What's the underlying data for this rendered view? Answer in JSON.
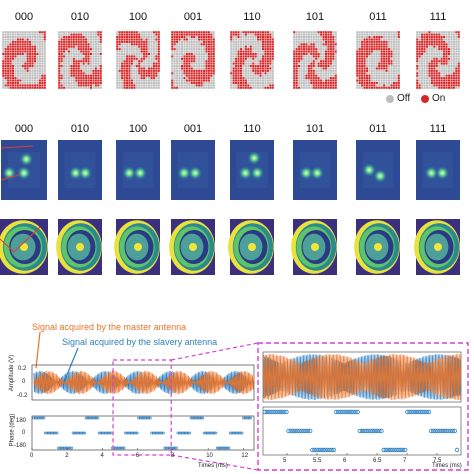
{
  "codes": [
    "000",
    "010",
    "100",
    "001",
    "110",
    "101",
    "011",
    "111"
  ],
  "legend": {
    "off": {
      "label": "Off",
      "color": "#bdbdbd"
    },
    "on": {
      "label": "On",
      "color": "#d62728"
    }
  },
  "colors": {
    "master": "#e8732b",
    "slave": "#2f7fc1",
    "dashed_box": "#d63fd6",
    "field_low": "#2b3a85",
    "field_high": "#f0e63a"
  },
  "annotations": {
    "master": "Signal acquired by the master antenna",
    "slave": "Signal acquired by the slavery antenna"
  },
  "plot": {
    "amp_ylabel": "Amplitude (V)",
    "amp_ticks": [
      "0.2",
      "0",
      "-0.2"
    ],
    "phase_ylabel": "Phase (deg)",
    "phase_ticks": [
      "180",
      "0",
      "-180"
    ],
    "xlabel": "Times (ms)",
    "xticks": [
      "0",
      "2",
      "4",
      "6",
      "8",
      "10",
      "12"
    ],
    "zoom_xticks": [
      "5",
      "5.5",
      "6",
      "6.5",
      "7",
      "7.5"
    ],
    "zoom_xlabel": "Times (ms)"
  },
  "chart_data": {
    "type": "line",
    "xlabel": "Times (ms)",
    "ylabel": "Amplitude (V)",
    "xlim": [
      0,
      12.6
    ],
    "ylim": [
      -0.3,
      0.3
    ],
    "series": [
      {
        "name": "Signal acquired by the master antenna",
        "peak_amplitude": 0.2
      },
      {
        "name": "Signal acquired by the slavery antenna",
        "peak_amplitude": 0.2
      }
    ],
    "phase": {
      "ylabel": "Phase (deg)",
      "ylim": [
        -180,
        180
      ],
      "levels": [
        180,
        0,
        -180
      ]
    },
    "zoom": {
      "xlim": [
        4.6,
        7.9
      ]
    }
  }
}
